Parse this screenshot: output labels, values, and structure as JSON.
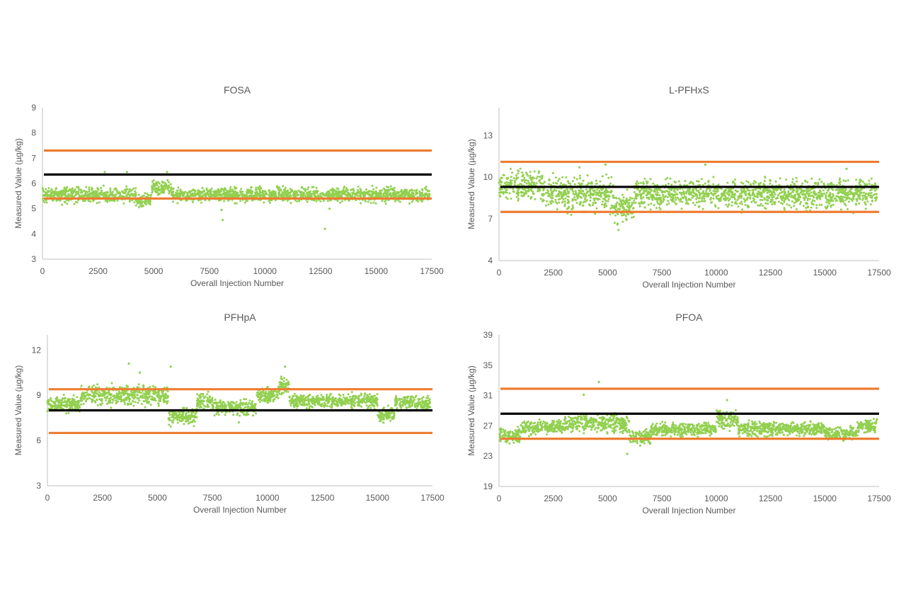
{
  "colors": {
    "points": "#92d050",
    "limit": "#ed7d31",
    "mean": "#000000",
    "axis": "#bfbfbf",
    "text": "#595959"
  },
  "chart_data": [
    {
      "type": "scatter",
      "title": "FOSA",
      "xlabel": "Overall Injection Number",
      "ylabel": "Measured Value (µg/kg)",
      "xlim": [
        0,
        17500
      ],
      "ylim": [
        3,
        9
      ],
      "xticks": [
        "0",
        "2500",
        "5000",
        "7500",
        "10000",
        "12500",
        "15000",
        "17500"
      ],
      "yticks": [
        "3",
        "4",
        "5",
        "6",
        "7",
        "8",
        "9"
      ],
      "reference_lines": [
        {
          "role": "upper-limit",
          "y": 7.3
        },
        {
          "role": "mean",
          "y": 6.35
        },
        {
          "role": "lower-limit",
          "y": 5.4
        }
      ],
      "series": [
        {
          "segments": [
            {
              "x": [
                0,
                4200
              ],
              "mean": 5.55,
              "spread": 0.28
            },
            {
              "x": [
                4200,
                4900
              ],
              "mean": 5.35,
              "spread": 0.25
            },
            {
              "x": [
                4900,
                5800
              ],
              "mean": 5.85,
              "spread": 0.25
            },
            {
              "x": [
                5800,
                17400
              ],
              "mean": 5.55,
              "spread": 0.25
            }
          ],
          "outliers": [
            [
              2800,
              6.45
            ],
            [
              3800,
              6.45
            ],
            [
              5600,
              6.45
            ],
            [
              8100,
              4.55
            ],
            [
              8050,
              4.95
            ],
            [
              12700,
              4.2
            ],
            [
              12900,
              5.0
            ]
          ]
        }
      ]
    },
    {
      "type": "scatter",
      "title": "L-PFHxS",
      "xlabel": "Overall Injection Number",
      "ylabel": "Measured Value (µg/kg)",
      "xlim": [
        0,
        17500
      ],
      "ylim": [
        4,
        15
      ],
      "xticks": [
        "0",
        "2500",
        "5000",
        "7500",
        "10000",
        "12500",
        "15000",
        "17500"
      ],
      "yticks": [
        "4",
        "7",
        "10",
        "13"
      ],
      "reference_lines": [
        {
          "role": "upper-limit",
          "y": 11.1
        },
        {
          "role": "mean",
          "y": 9.3
        },
        {
          "role": "lower-limit",
          "y": 7.5
        }
      ],
      "series": [
        {
          "segments": [
            {
              "x": [
                0,
                2000
              ],
              "mean": 9.4,
              "spread": 0.9
            },
            {
              "x": [
                2000,
                5300
              ],
              "mean": 8.8,
              "spread": 1.0
            },
            {
              "x": [
                5300,
                6200
              ],
              "mean": 7.9,
              "spread": 0.9
            },
            {
              "x": [
                6200,
                17400
              ],
              "mean": 8.8,
              "spread": 0.9
            }
          ],
          "outliers": [
            [
              5500,
              6.2
            ],
            [
              5450,
              6.6
            ],
            [
              4900,
              10.9
            ],
            [
              9500,
              10.9
            ],
            [
              16000,
              10.6
            ],
            [
              3700,
              10.7
            ]
          ]
        }
      ]
    },
    {
      "type": "scatter",
      "title": "PFHpA",
      "xlabel": "Overall Injection Number",
      "ylabel": "Measured Value (µg/kg)",
      "xlim": [
        0,
        17500
      ],
      "ylim": [
        3,
        13
      ],
      "xticks": [
        "0",
        "2500",
        "5000",
        "7500",
        "10000",
        "12500",
        "15000",
        "17500"
      ],
      "yticks": [
        "3",
        "6",
        "9",
        "12"
      ],
      "reference_lines": [
        {
          "role": "upper-limit",
          "y": 9.4
        },
        {
          "role": "mean",
          "y": 8.0
        },
        {
          "role": "lower-limit",
          "y": 6.5
        }
      ],
      "series": [
        {
          "segments": [
            {
              "x": [
                0,
                1500
              ],
              "mean": 8.4,
              "spread": 0.45
            },
            {
              "x": [
                1500,
                5500
              ],
              "mean": 9.0,
              "spread": 0.6
            },
            {
              "x": [
                5500,
                6800
              ],
              "mean": 7.6,
              "spread": 0.45
            },
            {
              "x": [
                6800,
                7500
              ],
              "mean": 8.6,
              "spread": 0.45
            },
            {
              "x": [
                7500,
                9500
              ],
              "mean": 8.2,
              "spread": 0.45
            },
            {
              "x": [
                9500,
                10500
              ],
              "mean": 9.0,
              "spread": 0.45
            },
            {
              "x": [
                10500,
                11000
              ],
              "mean": 9.6,
              "spread": 0.5
            },
            {
              "x": [
                11000,
                15000
              ],
              "mean": 8.6,
              "spread": 0.4
            },
            {
              "x": [
                15000,
                15800
              ],
              "mean": 7.7,
              "spread": 0.4
            },
            {
              "x": [
                15800,
                17400
              ],
              "mean": 8.5,
              "spread": 0.45
            }
          ],
          "outliers": [
            [
              3700,
              11.1
            ],
            [
              5600,
              10.9
            ],
            [
              10800,
              10.9
            ],
            [
              8700,
              7.2
            ],
            [
              4200,
              10.5
            ]
          ]
        }
      ]
    },
    {
      "type": "scatter",
      "title": "PFOA",
      "xlabel": "Overall Injection Number",
      "ylabel": "Measured Value (µg/kg)",
      "xlim": [
        0,
        17500
      ],
      "ylim": [
        19,
        39
      ],
      "xticks": [
        "0",
        "2500",
        "5000",
        "7500",
        "10000",
        "12500",
        "15000",
        "17500"
      ],
      "yticks": [
        "19",
        "23",
        "27",
        "31",
        "35",
        "39"
      ],
      "reference_lines": [
        {
          "role": "upper-limit",
          "y": 31.9
        },
        {
          "role": "mean",
          "y": 28.6
        },
        {
          "role": "lower-limit",
          "y": 25.3
        }
      ],
      "series": [
        {
          "segments": [
            {
              "x": [
                0,
                1000
              ],
              "mean": 25.7,
              "spread": 0.8
            },
            {
              "x": [
                1000,
                3000
              ],
              "mean": 26.8,
              "spread": 0.8
            },
            {
              "x": [
                3000,
                6000
              ],
              "mean": 27.3,
              "spread": 1.0
            },
            {
              "x": [
                6000,
                7000
              ],
              "mean": 25.6,
              "spread": 0.8
            },
            {
              "x": [
                7000,
                10000
              ],
              "mean": 26.5,
              "spread": 0.8
            },
            {
              "x": [
                10000,
                11000
              ],
              "mean": 27.8,
              "spread": 1.0
            },
            {
              "x": [
                11000,
                15000
              ],
              "mean": 26.6,
              "spread": 0.8
            },
            {
              "x": [
                15000,
                16500
              ],
              "mean": 26.0,
              "spread": 0.7
            },
            {
              "x": [
                16500,
                17400
              ],
              "mean": 27.0,
              "spread": 0.7
            }
          ],
          "outliers": [
            [
              4600,
              32.8
            ],
            [
              3900,
              31.1
            ],
            [
              5900,
              23.3
            ],
            [
              10500,
              30.4
            ],
            [
              6500,
              24.4
            ]
          ]
        }
      ]
    }
  ]
}
